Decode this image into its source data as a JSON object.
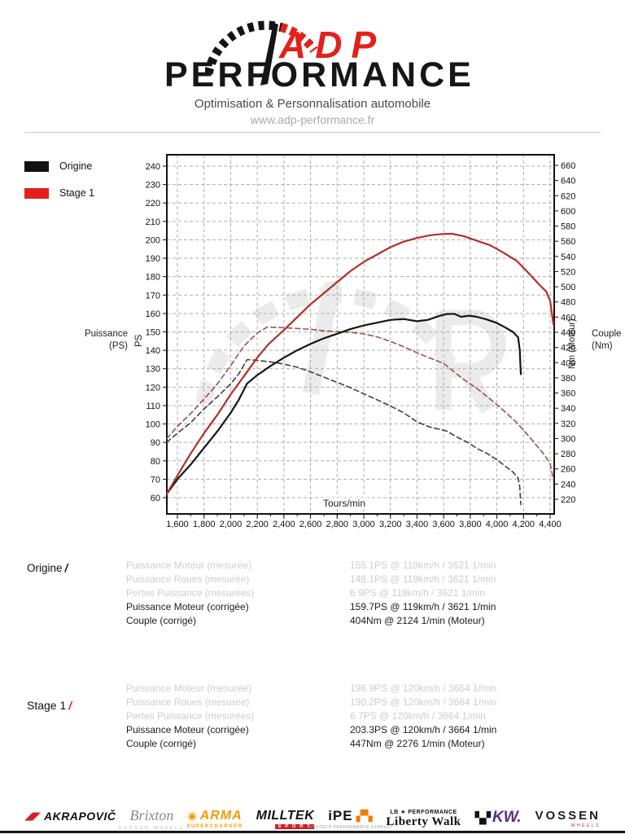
{
  "header": {
    "brand_top": "ADP",
    "brand_name": "PERFORMANCE",
    "tagline": "Optimisation & Personnalisation automobile",
    "website": "www.adp-performance.fr"
  },
  "chart_data": {
    "type": "line",
    "xlabel": "Tours/min",
    "ylabel_left": "Puissance\n(PS)",
    "y_left_unit": "PS",
    "ylabel_right": "Couple\n(Nm)",
    "y_right_unit": "Nm (Moteur)",
    "grid": true,
    "x_axis": {
      "min": 1600,
      "max": 4400,
      "step": 200,
      "tick_labels": [
        "1,600",
        "1,800",
        "2,000",
        "2,200",
        "2,400",
        "2,600",
        "2,800",
        "3,000",
        "3,200",
        "3,400",
        "3,600",
        "3,800",
        "4,000",
        "4,200",
        "4,400"
      ]
    },
    "y_axis_left": {
      "min": 60,
      "max": 240,
      "step": 10
    },
    "y_axis_right": {
      "min": 220,
      "max": 660,
      "step": 20
    },
    "legend": [
      {
        "label": "Origine",
        "color": "#111111"
      },
      {
        "label": "Stage 1",
        "color": "#e2211c"
      }
    ],
    "series": [
      {
        "id": "origine-torque",
        "name": "Origine couple (Nm)",
        "axis": "right",
        "color": "#3f3f3f",
        "dashed": true,
        "points": [
          [
            1520,
            295
          ],
          [
            1600,
            307
          ],
          [
            1700,
            321
          ],
          [
            1800,
            339
          ],
          [
            1900,
            355
          ],
          [
            2000,
            372
          ],
          [
            2060,
            385
          ],
          [
            2124,
            404
          ],
          [
            2200,
            403
          ],
          [
            2300,
            401
          ],
          [
            2400,
            398
          ],
          [
            2500,
            394
          ],
          [
            2600,
            388
          ],
          [
            2700,
            381
          ],
          [
            2800,
            374
          ],
          [
            2900,
            367
          ],
          [
            3000,
            359
          ],
          [
            3100,
            351
          ],
          [
            3200,
            343
          ],
          [
            3300,
            334
          ],
          [
            3400,
            322
          ],
          [
            3500,
            315
          ],
          [
            3621,
            310
          ],
          [
            3700,
            302
          ],
          [
            3790,
            294
          ],
          [
            3850,
            287
          ],
          [
            3920,
            281
          ],
          [
            4000,
            272
          ],
          [
            4060,
            264
          ],
          [
            4120,
            256
          ],
          [
            4160,
            248
          ],
          [
            4172,
            236
          ],
          [
            4180,
            213
          ]
        ]
      },
      {
        "id": "stage1-torque",
        "name": "Stage 1 couple (Nm)",
        "axis": "right",
        "color": "#99534d",
        "dashed": true,
        "points": [
          [
            1520,
            300
          ],
          [
            1600,
            316
          ],
          [
            1700,
            333
          ],
          [
            1800,
            352
          ],
          [
            1900,
            372
          ],
          [
            2000,
            396
          ],
          [
            2100,
            422
          ],
          [
            2200,
            439
          ],
          [
            2276,
            447
          ],
          [
            2400,
            446
          ],
          [
            2500,
            445
          ],
          [
            2600,
            444
          ],
          [
            2700,
            442
          ],
          [
            2800,
            441
          ],
          [
            2900,
            440
          ],
          [
            3000,
            438
          ],
          [
            3100,
            434
          ],
          [
            3200,
            428
          ],
          [
            3300,
            421
          ],
          [
            3400,
            413
          ],
          [
            3500,
            406
          ],
          [
            3600,
            399
          ],
          [
            3664,
            390
          ],
          [
            3750,
            378
          ],
          [
            3850,
            366
          ],
          [
            3950,
            352
          ],
          [
            4050,
            337
          ],
          [
            4150,
            321
          ],
          [
            4250,
            301
          ],
          [
            4350,
            280
          ],
          [
            4400,
            267
          ],
          [
            4425,
            245
          ]
        ]
      },
      {
        "id": "origine-power",
        "name": "Origine puissance (PS)",
        "axis": "left",
        "color": "#151515",
        "dashed": false,
        "points": [
          [
            1520,
            62
          ],
          [
            1600,
            70
          ],
          [
            1700,
            78
          ],
          [
            1800,
            87
          ],
          [
            1900,
            96
          ],
          [
            2000,
            106
          ],
          [
            2060,
            113
          ],
          [
            2124,
            122
          ],
          [
            2200,
            126.5
          ],
          [
            2300,
            131.5
          ],
          [
            2400,
            136
          ],
          [
            2500,
            140
          ],
          [
            2600,
            143.5
          ],
          [
            2700,
            146.5
          ],
          [
            2800,
            149
          ],
          [
            2900,
            151.5
          ],
          [
            3000,
            153.5
          ],
          [
            3100,
            155
          ],
          [
            3200,
            156.5
          ],
          [
            3300,
            157
          ],
          [
            3400,
            155.8
          ],
          [
            3480,
            156.5
          ],
          [
            3560,
            158.5
          ],
          [
            3621,
            159.7
          ],
          [
            3680,
            159.8
          ],
          [
            3730,
            158.2
          ],
          [
            3790,
            158.8
          ],
          [
            3850,
            158.2
          ],
          [
            3920,
            156.8
          ],
          [
            4000,
            154.8
          ],
          [
            4060,
            152.5
          ],
          [
            4120,
            150
          ],
          [
            4160,
            147
          ],
          [
            4172,
            140
          ],
          [
            4180,
            127
          ]
        ]
      },
      {
        "id": "stage1-power",
        "name": "Stage 1 puissance (PS)",
        "axis": "left",
        "color": "#b32f28",
        "dashed": false,
        "points": [
          [
            1520,
            62
          ],
          [
            1600,
            72
          ],
          [
            1700,
            84
          ],
          [
            1800,
            95
          ],
          [
            1900,
            105
          ],
          [
            2000,
            116
          ],
          [
            2100,
            126
          ],
          [
            2200,
            136
          ],
          [
            2280,
            143
          ],
          [
            2400,
            151
          ],
          [
            2500,
            158
          ],
          [
            2600,
            165
          ],
          [
            2700,
            171
          ],
          [
            2800,
            177
          ],
          [
            2900,
            183
          ],
          [
            3000,
            188
          ],
          [
            3100,
            192
          ],
          [
            3200,
            196
          ],
          [
            3300,
            199
          ],
          [
            3400,
            201
          ],
          [
            3500,
            202.5
          ],
          [
            3600,
            203.2
          ],
          [
            3664,
            203.3
          ],
          [
            3750,
            202
          ],
          [
            3850,
            199.5
          ],
          [
            3950,
            197
          ],
          [
            4050,
            193
          ],
          [
            4150,
            188.5
          ],
          [
            4250,
            181
          ],
          [
            4320,
            175.5
          ],
          [
            4370,
            172
          ],
          [
            4400,
            167
          ],
          [
            4425,
            154
          ]
        ]
      }
    ]
  },
  "results": [
    {
      "id": "origine",
      "title": "Origine",
      "slash": "/",
      "rows": [
        {
          "label": "Puissance Moteur (mesurée)",
          "value": "155.1PS @ 119km/h / 3621 1/min",
          "muted": true
        },
        {
          "label": "Puissance Roues (mesurée)",
          "value": "148.1PS @ 119km/h / 3621 1/min",
          "muted": true
        },
        {
          "label": "Pertes Puissance (mesurées)",
          "value": "6.9PS @ 119km/h / 3621 1/min",
          "muted": true
        },
        {
          "label": "Puissance Moteur (corrigée)",
          "value": "159.7PS @ 119km/h / 3621 1/min",
          "muted": false
        },
        {
          "label": "Couple (corrigé)",
          "value": "404Nm @ 2124 1/min (Moteur)",
          "muted": false
        }
      ]
    },
    {
      "id": "stage1",
      "title": "Stage 1",
      "slash": "/",
      "rows": [
        {
          "label": "Puissance Moteur (mesurée)",
          "value": "196.9PS @ 120km/h / 3664 1/min",
          "muted": true
        },
        {
          "label": "Puissance Roues (mesurée)",
          "value": "190.2PS @ 120km/h / 3664 1/min",
          "muted": true
        },
        {
          "label": "Pertes Puissance (mesurées)",
          "value": "6.7PS @ 120km/h / 3664 1/min",
          "muted": true
        },
        {
          "label": "Puissance Moteur (corrigée)",
          "value": "203.3PS @ 120km/h / 3664 1/min",
          "muted": false
        },
        {
          "label": "Couple (corrigé)",
          "value": "447Nm @ 2276 1/min (Moteur)",
          "muted": false
        }
      ]
    }
  ],
  "footer": {
    "brands": [
      {
        "id": "akrapovic",
        "icon": "◢◤",
        "text": "AKRAPOVIČ",
        "sub": ""
      },
      {
        "id": "brixton",
        "icon": "",
        "text": "Brixton",
        "sub": "FORGED WHEELS"
      },
      {
        "id": "arma",
        "icon": "◉",
        "text": "ARMA",
        "sub": "SUPERCHARGER"
      },
      {
        "id": "milltek",
        "icon": "",
        "text": "MILLTEK",
        "sub": "S P O R T"
      },
      {
        "id": "ipe",
        "icon": "▞▚",
        "text": "iPE",
        "sub": "INNOTECH PERFORMANCE EXHAUST"
      },
      {
        "id": "libertywalk",
        "icon": "LB ★ PERFORMANCE",
        "text": "Liberty Walk",
        "sub": ""
      },
      {
        "id": "kw",
        "icon": "▚▞",
        "text": "KW.",
        "sub": ""
      },
      {
        "id": "vossen",
        "icon": "",
        "text": "VOSSEN",
        "sub": "WHEELS"
      }
    ]
  }
}
